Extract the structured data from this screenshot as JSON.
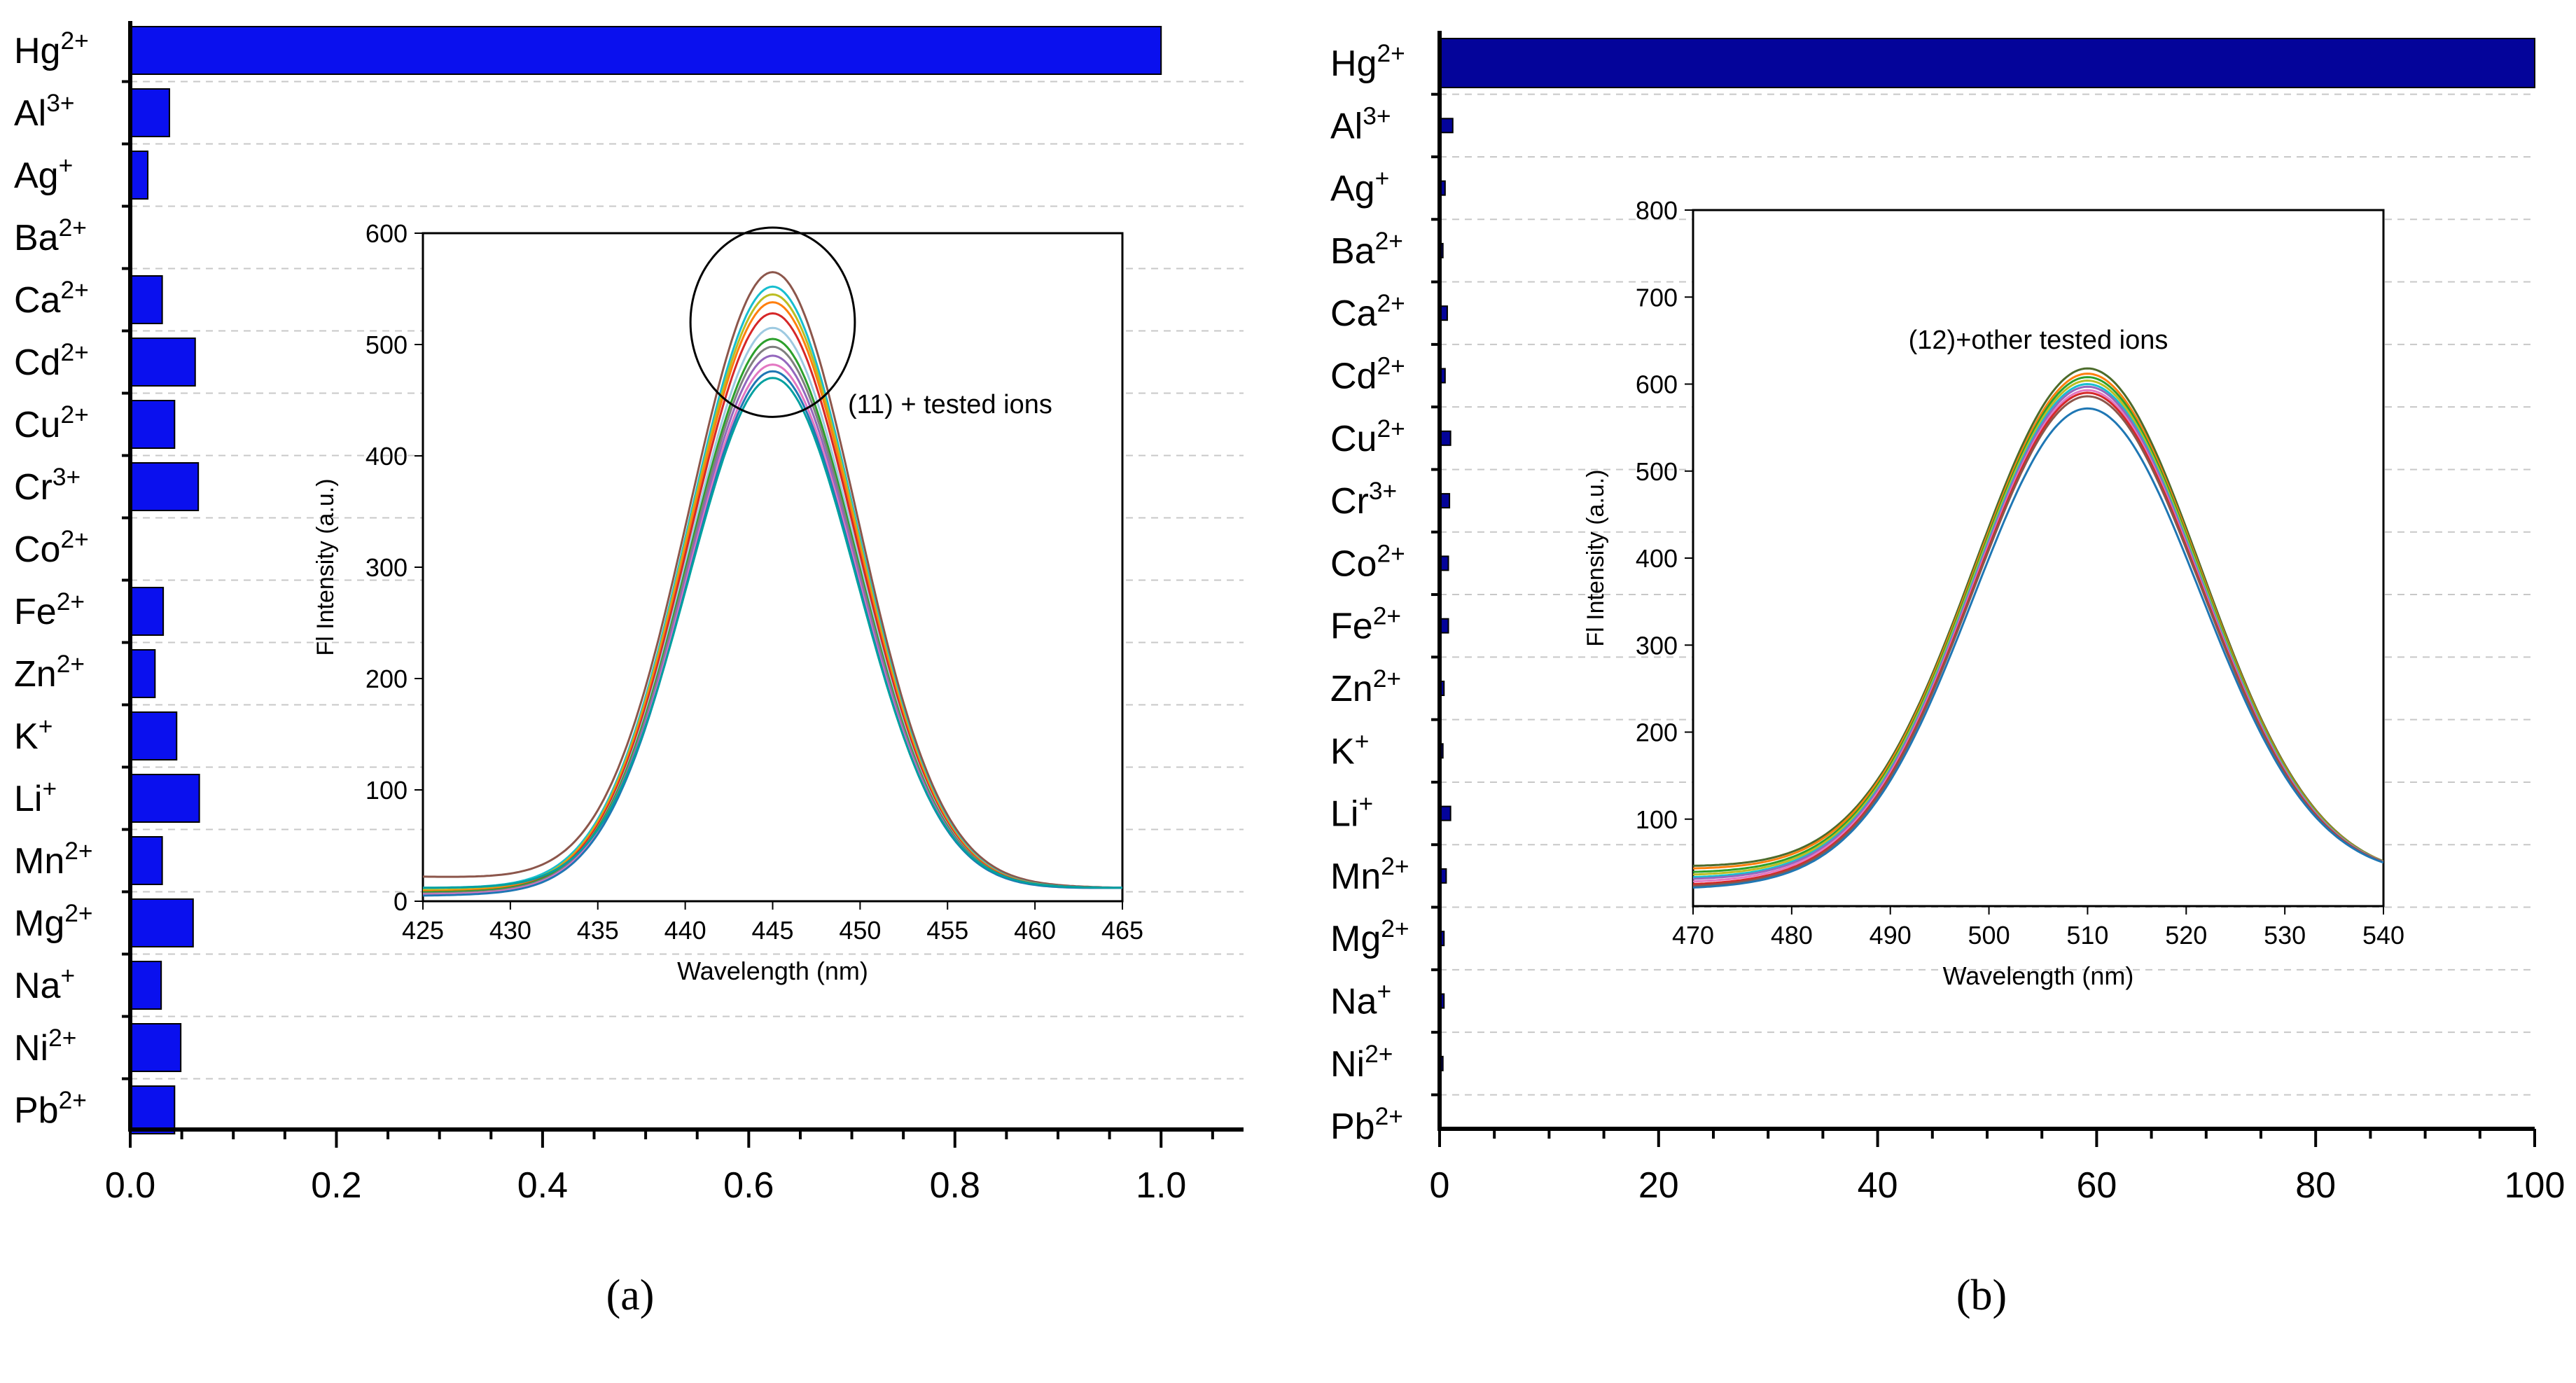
{
  "colors": {
    "bar_a": "#0a10ee",
    "bar_b": "#04049a",
    "grid": "#c8c8c8",
    "axis": "#000000",
    "ellipse": "#000000"
  },
  "panel_labels": {
    "a": "(a)",
    "b": "(b)"
  },
  "chart_data": [
    {
      "id": "a",
      "type": "bar",
      "orientation": "horizontal",
      "categories": [
        {
          "base": "Hg",
          "sup": "2+"
        },
        {
          "base": "Al",
          "sup": "3+"
        },
        {
          "base": "Ag",
          "sup": "+"
        },
        {
          "base": "Ba",
          "sup": "2+"
        },
        {
          "base": "Ca",
          "sup": "2+"
        },
        {
          "base": "Cd",
          "sup": "2+"
        },
        {
          "base": "Cu",
          "sup": "2+"
        },
        {
          "base": "Cr",
          "sup": "3+"
        },
        {
          "base": "Co",
          "sup": "2+"
        },
        {
          "base": "Fe",
          "sup": "2+"
        },
        {
          "base": "Zn",
          "sup": "2+"
        },
        {
          "base": "K",
          "sup": "+"
        },
        {
          "base": "Li",
          "sup": "+"
        },
        {
          "base": "Mn",
          "sup": "2+"
        },
        {
          "base": "Mg",
          "sup": "2+"
        },
        {
          "base": "Na",
          "sup": "+"
        },
        {
          "base": "Ni",
          "sup": "2+"
        },
        {
          "base": "Pb",
          "sup": "2+"
        }
      ],
      "values": [
        1.0,
        0.038,
        0.017,
        0.0,
        0.031,
        0.063,
        0.043,
        0.066,
        0.0,
        0.032,
        0.024,
        0.045,
        0.067,
        0.031,
        0.061,
        0.03,
        0.049,
        0.043
      ],
      "xlim": [
        0,
        1.08
      ],
      "xticks": [
        0.0,
        0.2,
        0.4,
        0.6,
        0.8,
        1.0
      ],
      "xtick_labels": [
        "0.0",
        "0.2",
        "0.4",
        "0.6",
        "0.8",
        "1.0"
      ],
      "grid": "horizontal-dashed",
      "inset": {
        "type": "line",
        "xlabel": "Wavelength (nm)",
        "ylabel": "Fl Intensity (a.u.)",
        "xlim": [
          425,
          465
        ],
        "ylim": [
          0,
          600
        ],
        "xticks": [
          425,
          430,
          435,
          440,
          445,
          450,
          455,
          460,
          465
        ],
        "yticks": [
          0,
          100,
          200,
          300,
          400,
          500,
          600
        ],
        "annotation": "(11) + tested ions",
        "highlight_ellipse": {
          "center_x": 445,
          "center_y": 520,
          "half_width_x": 4.7,
          "half_height_y": 85
        },
        "peak_x": 445,
        "sigma": 4.8,
        "baseline_end": 12,
        "series": [
          {
            "color": "#8c564b",
            "peak": 565,
            "baseline": 22
          },
          {
            "color": "#17becf",
            "peak": 552,
            "baseline": 12
          },
          {
            "color": "#bcbd22",
            "peak": 545,
            "baseline": 10
          },
          {
            "color": "#ff7f0e",
            "peak": 538,
            "baseline": 9
          },
          {
            "color": "#d62728",
            "peak": 528,
            "baseline": 8
          },
          {
            "color": "#9ecae1",
            "peak": 515,
            "baseline": 7
          },
          {
            "color": "#2ca02c",
            "peak": 505,
            "baseline": 8
          },
          {
            "color": "#7f7f7f",
            "peak": 498,
            "baseline": 7
          },
          {
            "color": "#9467bd",
            "peak": 490,
            "baseline": 6
          },
          {
            "color": "#e377c2",
            "peak": 482,
            "baseline": 6
          },
          {
            "color": "#1f77b4",
            "peak": 476,
            "baseline": 5
          },
          {
            "color": "#00a0a0",
            "peak": 470,
            "baseline": 12
          }
        ]
      }
    },
    {
      "id": "b",
      "type": "bar",
      "orientation": "horizontal",
      "categories": [
        {
          "base": "Hg",
          "sup": "2+"
        },
        {
          "base": "Al",
          "sup": "3+"
        },
        {
          "base": "Ag",
          "sup": "+"
        },
        {
          "base": "Ba",
          "sup": "2+"
        },
        {
          "base": "Ca",
          "sup": "2+"
        },
        {
          "base": "Cd",
          "sup": "2+"
        },
        {
          "base": "Cu",
          "sup": "2+"
        },
        {
          "base": "Cr",
          "sup": "3+"
        },
        {
          "base": "Co",
          "sup": "2+"
        },
        {
          "base": "Fe",
          "sup": "2+"
        },
        {
          "base": "Zn",
          "sup": "2+"
        },
        {
          "base": "K",
          "sup": "+"
        },
        {
          "base": "Li",
          "sup": "+"
        },
        {
          "base": "Mn",
          "sup": "2+"
        },
        {
          "base": "Mg",
          "sup": "2+"
        },
        {
          "base": "Na",
          "sup": "+"
        },
        {
          "base": "Ni",
          "sup": "2+"
        },
        {
          "base": "Pb",
          "sup": "2+"
        }
      ],
      "values": [
        100,
        1.2,
        0.5,
        0.3,
        0.7,
        0.5,
        1.0,
        0.9,
        0.8,
        0.8,
        0.4,
        0.3,
        1.0,
        0.6,
        0.4,
        0.4,
        0.3,
        0.0
      ],
      "xlim": [
        0,
        100
      ],
      "xticks": [
        0,
        20,
        40,
        60,
        80,
        100
      ],
      "xtick_labels": [
        "0",
        "20",
        "40",
        "60",
        "80",
        "100"
      ],
      "grid": "horizontal-dashed",
      "inset": {
        "type": "line",
        "xlabel": "Wavelength (nm)",
        "ylabel": "Fl Intensity (a.u.)",
        "xlim": [
          470,
          540
        ],
        "ylim": [
          0,
          800
        ],
        "xticks": [
          470,
          480,
          490,
          500,
          510,
          520,
          530,
          540
        ],
        "yticks": [
          100,
          200,
          300,
          400,
          500,
          600,
          700,
          800
        ],
        "annotation": "(12)+other tested ions",
        "peak_x": 510,
        "sigma": 11.5,
        "baseline_end": 32,
        "series": [
          {
            "color": "#4c6b2b",
            "peak": 618,
            "baseline": 45
          },
          {
            "color": "#ff7f0e",
            "peak": 612,
            "baseline": 42
          },
          {
            "color": "#2ca02c",
            "peak": 608,
            "baseline": 38
          },
          {
            "color": "#bcbd22",
            "peak": 604,
            "baseline": 35
          },
          {
            "color": "#17becf",
            "peak": 600,
            "baseline": 32
          },
          {
            "color": "#9467bd",
            "peak": 597,
            "baseline": 30
          },
          {
            "color": "#e377c2",
            "peak": 593,
            "baseline": 27
          },
          {
            "color": "#d62728",
            "peak": 590,
            "baseline": 24
          },
          {
            "color": "#8c564b",
            "peak": 586,
            "baseline": 22
          },
          {
            "color": "#1f77b4",
            "peak": 572,
            "baseline": 20
          }
        ]
      }
    }
  ]
}
